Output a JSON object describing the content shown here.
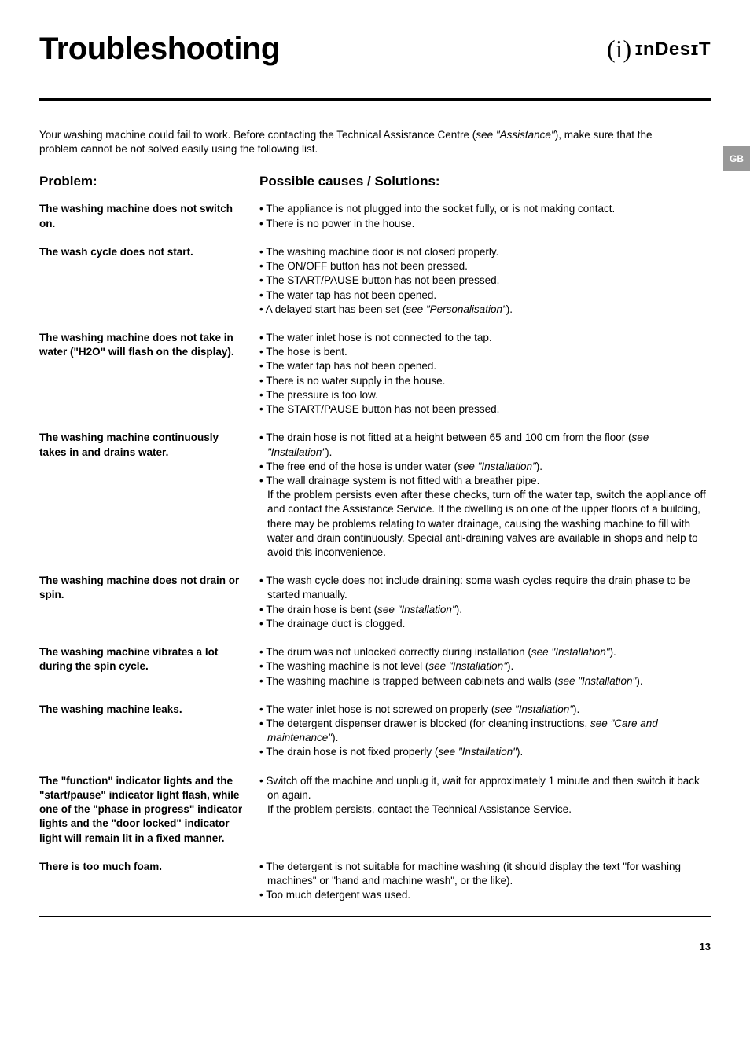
{
  "page": {
    "title": "Troubleshooting",
    "brand_upper": "InDesIT",
    "gb_tag": "GB",
    "page_number": "13"
  },
  "intro": "Your washing machine could fail to work. Before contacting the Technical Assistance Centre (see \"Assistance\"), make sure that the problem cannot be not solved easily using the following list.",
  "headings": {
    "problem": "Problem:",
    "solution": "Possible causes / Solutions:"
  },
  "rows": [
    {
      "problem": "The washing machine does not switch on.",
      "solutions": [
        "• The appliance is not plugged into the socket fully, or is not making contact.",
        "• There is no power in the house."
      ]
    },
    {
      "problem": "The wash cycle does not start.",
      "solutions": [
        "• The washing machine door is not closed properly.",
        "• The ON/OFF button has not been pressed.",
        "• The START/PAUSE button has not been pressed.",
        "• The water tap has not been opened.",
        "• A delayed start has been set (see \"Personalisation\")."
      ]
    },
    {
      "problem": "The washing machine does not take in water (\"H2O\" will flash on the display).",
      "solutions": [
        "• The water inlet hose is not connected to the tap.",
        "• The hose is bent.",
        "• The water tap has not been opened.",
        "• There is no water supply in the house.",
        "• The pressure is too low.",
        "• The START/PAUSE button has not been pressed."
      ]
    },
    {
      "problem": "The washing machine continuously takes in and drains water.",
      "solutions": [
        "• The drain hose is not fitted at a height between 65 and 100 cm from the floor (see \"Installation\").",
        "• The free end of the hose is under water (see \"Installation\").",
        "• The wall drainage system is not fitted with a breather pipe."
      ],
      "tail": "If the problem persists even after these checks, turn off the water tap, switch the appliance off and contact the Assistance Service. If the dwelling is on one of the upper floors of a building, there may be problems relating to water drainage, causing the washing machine to fill with water and drain continuously. Special anti-draining valves are available in shops and help to avoid this inconvenience."
    },
    {
      "problem": "The washing machine does not drain or spin.",
      "solutions": [
        "• The wash cycle does not include draining: some wash cycles require the drain phase to be started manually.",
        "• The drain hose is bent (see \"Installation\").",
        "• The drainage duct is clogged."
      ]
    },
    {
      "problem": "The washing machine vibrates a lot during the spin cycle.",
      "solutions": [
        "• The drum was not unlocked correctly during installation (see \"Installation\").",
        "• The washing machine is not level (see \"Installation\").",
        "• The washing machine is trapped between cabinets and walls (see \"Installation\")."
      ]
    },
    {
      "problem": "The washing machine leaks.",
      "solutions": [
        "• The water inlet hose is not screwed on properly (see \"Installation\").",
        "• The detergent dispenser drawer is blocked (for cleaning instructions, see \"Care and maintenance\").",
        "• The drain hose is not fixed properly (see \"Installation\")."
      ]
    },
    {
      "problem": "The \"function\" indicator lights and the \"start/pause\" indicator light flash, while one of the \"phase in progress\" indicator lights and the \"door locked\" indicator light will remain lit in a fixed manner.",
      "solutions": [
        "• Switch off the machine and unplug it, wait for approximately 1 minute and then switch it back on again."
      ],
      "tail": "If the problem persists, contact the Technical Assistance Service."
    },
    {
      "problem": "There is too much foam.",
      "solutions": [
        "• The detergent is not suitable for machine washing (it should display the text \"for washing machines\" or \"hand and machine wash\", or the like).",
        "• Too much detergent was used."
      ]
    }
  ]
}
